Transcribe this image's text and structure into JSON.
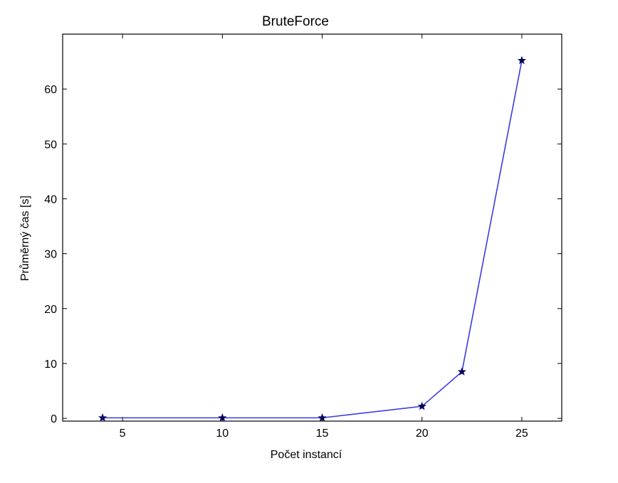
{
  "chart_data": {
    "type": "line",
    "title": "BruteForce",
    "xlabel": "Počet instancí",
    "ylabel": "Průměrný čas [s]",
    "xlim": [
      2,
      27
    ],
    "ylim": [
      -0.5,
      70
    ],
    "xticks": [
      5,
      10,
      15,
      20,
      25
    ],
    "yticks": [
      0,
      10,
      20,
      30,
      40,
      50,
      60
    ],
    "grid": false,
    "series": [
      {
        "x": [
          4,
          10,
          15,
          20,
          22,
          25
        ],
        "y": [
          0.1,
          0.1,
          0.1,
          2.2,
          8.5,
          65.2
        ],
        "color": "#3b3be0",
        "marker": "star",
        "marker_color": "#00005a"
      }
    ]
  }
}
